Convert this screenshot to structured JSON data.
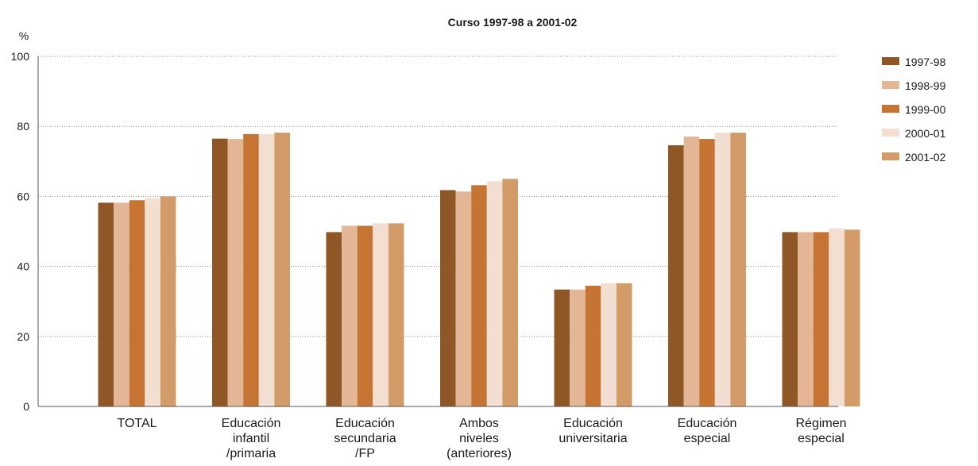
{
  "chart_data": {
    "type": "bar",
    "title": "Curso 1997-98 a 2001-02",
    "ylabel": "%",
    "xlabel": "",
    "ylim": [
      0,
      100
    ],
    "yticks": [
      "0",
      "20",
      "40",
      "60",
      "80",
      "100"
    ],
    "grid": true,
    "legend": "top-right",
    "categories": [
      [
        "TOTAL"
      ],
      [
        "Educación",
        "infantil",
        "/primaria"
      ],
      [
        "Educación",
        "secundaria",
        "/FP"
      ],
      [
        "Ambos",
        "niveles",
        "(anteriores)"
      ],
      [
        "Educación",
        "universitaria"
      ],
      [
        "Educación",
        "especial"
      ],
      [
        "Régimen",
        "especial"
      ]
    ],
    "series": [
      {
        "name": "1997-98",
        "color": "#8f5626",
        "values": [
          58.2,
          76.5,
          49.8,
          61.8,
          33.4,
          74.6,
          49.8
        ]
      },
      {
        "name": "1998-99",
        "color": "#e3b796",
        "values": [
          58.2,
          76.4,
          51.6,
          61.4,
          33.4,
          77.1,
          49.8
        ]
      },
      {
        "name": "1999-00",
        "color": "#c57434",
        "values": [
          58.9,
          77.8,
          51.6,
          63.2,
          34.5,
          76.4,
          49.8
        ]
      },
      {
        "name": "2000-01",
        "color": "#f2dfd1",
        "values": [
          59.5,
          77.8,
          52.3,
          64.3,
          35.2,
          78.2,
          50.9
        ]
      },
      {
        "name": "2001-02",
        "color": "#d39b67",
        "values": [
          60.0,
          78.2,
          52.3,
          65.0,
          35.2,
          78.2,
          50.5
        ]
      }
    ]
  }
}
